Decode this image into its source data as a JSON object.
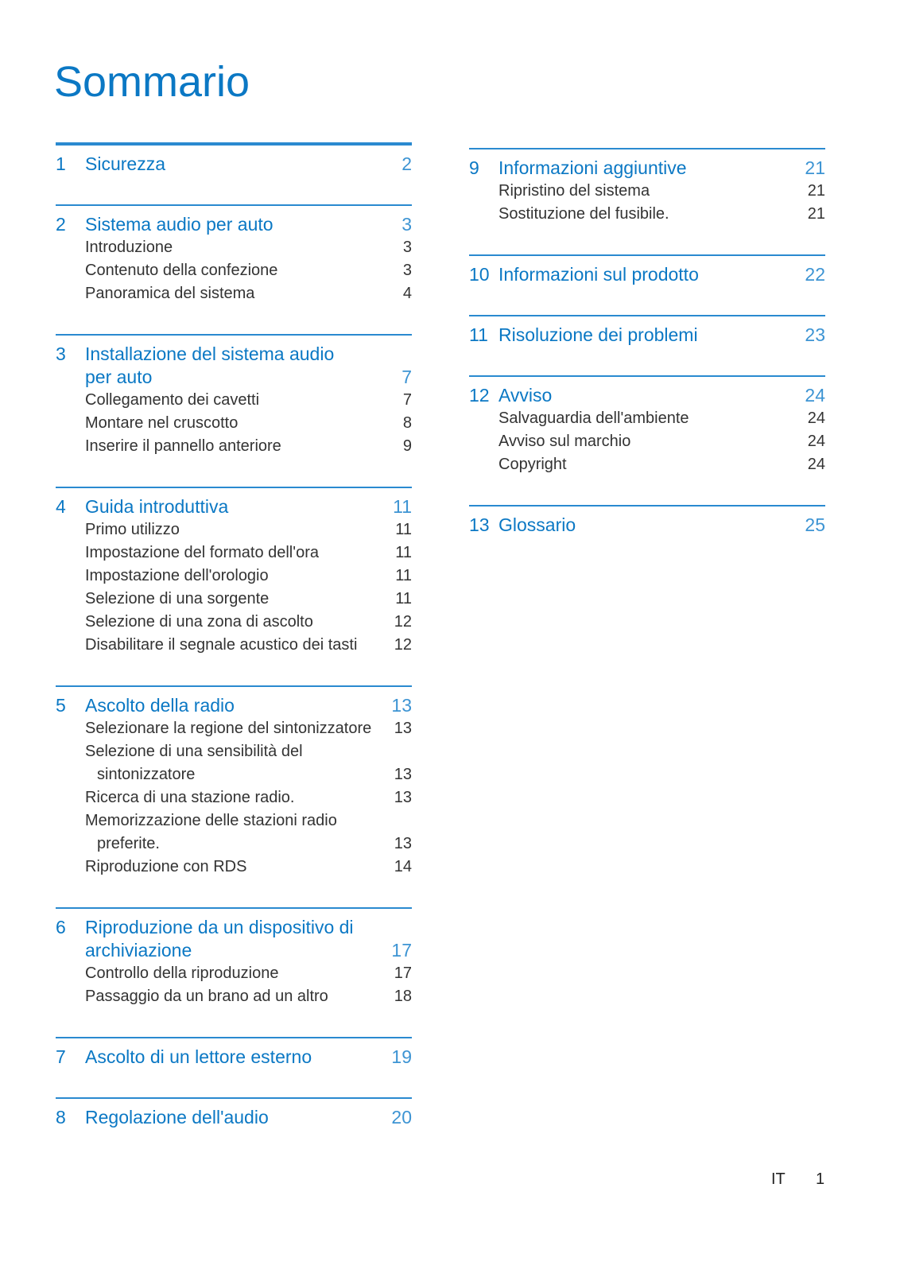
{
  "header": {
    "title": "Sommario"
  },
  "columns": [
    {
      "sections": [
        {
          "number": "1",
          "title": [
            "Sicurezza"
          ],
          "page": "2",
          "items": []
        },
        {
          "number": "2",
          "title": [
            "Sistema audio per auto"
          ],
          "page": "3",
          "items": [
            {
              "text": [
                "Introduzione"
              ],
              "page": "3"
            },
            {
              "text": [
                "Contenuto della confezione"
              ],
              "page": "3"
            },
            {
              "text": [
                "Panoramica del sistema"
              ],
              "page": "4"
            }
          ]
        },
        {
          "number": "3",
          "title": [
            "Installazione del sistema audio",
            "per auto"
          ],
          "page": "7",
          "items": [
            {
              "text": [
                "Collegamento dei cavetti"
              ],
              "page": "7"
            },
            {
              "text": [
                "Montare nel cruscotto"
              ],
              "page": "8"
            },
            {
              "text": [
                "Inserire il pannello anteriore"
              ],
              "page": "9"
            }
          ]
        },
        {
          "number": "4",
          "title": [
            "Guida introduttiva"
          ],
          "page": "11",
          "items": [
            {
              "text": [
                "Primo utilizzo"
              ],
              "page": "11"
            },
            {
              "text": [
                "Impostazione del formato dell'ora"
              ],
              "page": "11"
            },
            {
              "text": [
                "Impostazione dell'orologio"
              ],
              "page": "11"
            },
            {
              "text": [
                "Selezione di una sorgente"
              ],
              "page": "11"
            },
            {
              "text": [
                "Selezione di una zona di ascolto"
              ],
              "page": "12"
            },
            {
              "text": [
                "Disabilitare il segnale acustico dei tasti"
              ],
              "page": "12"
            }
          ]
        },
        {
          "number": "5",
          "title": [
            "Ascolto della radio"
          ],
          "page": "13",
          "items": [
            {
              "text": [
                "Selezionare la regione del sintonizzatore"
              ],
              "page": "13"
            },
            {
              "text": [
                "Selezione di una sensibilità del",
                "sintonizzatore"
              ],
              "page": "13"
            },
            {
              "text": [
                "Ricerca di una stazione radio."
              ],
              "page": "13"
            },
            {
              "text": [
                "Memorizzazione delle stazioni radio",
                "preferite."
              ],
              "page": "13"
            },
            {
              "text": [
                "Riproduzione con RDS"
              ],
              "page": "14"
            }
          ]
        },
        {
          "number": "6",
          "title": [
            "Riproduzione da un dispositivo di",
            "archiviazione"
          ],
          "page": "17",
          "items": [
            {
              "text": [
                "Controllo della riproduzione"
              ],
              "page": "17"
            },
            {
              "text": [
                "Passaggio da un brano ad un altro"
              ],
              "page": "18"
            }
          ]
        },
        {
          "number": "7",
          "title": [
            "Ascolto di un lettore esterno"
          ],
          "page": "19",
          "items": []
        },
        {
          "number": "8",
          "title": [
            "Regolazione dell'audio"
          ],
          "page": "20",
          "items": []
        }
      ]
    },
    {
      "sections": [
        {
          "number": "9",
          "title": [
            "Informazioni aggiuntive"
          ],
          "page": "21",
          "items": [
            {
              "text": [
                "Ripristino del sistema"
              ],
              "page": "21"
            },
            {
              "text": [
                "Sostituzione del fusibile."
              ],
              "page": "21"
            }
          ]
        },
        {
          "number": "10",
          "title": [
            "Informazioni sul prodotto"
          ],
          "page": "22",
          "items": []
        },
        {
          "number": "11",
          "title": [
            "Risoluzione dei problemi"
          ],
          "page": "23",
          "items": []
        },
        {
          "number": "12",
          "title": [
            "Avviso"
          ],
          "page": "24",
          "items": [
            {
              "text": [
                "Salvaguardia dell'ambiente"
              ],
              "page": "24"
            },
            {
              "text": [
                "Avviso sul marchio"
              ],
              "page": "24"
            },
            {
              "text": [
                "Copyright"
              ],
              "page": "24"
            }
          ]
        },
        {
          "number": "13",
          "title": [
            "Glossario"
          ],
          "page": "25",
          "items": []
        }
      ]
    }
  ],
  "footer": {
    "language": "IT",
    "page": "1"
  }
}
